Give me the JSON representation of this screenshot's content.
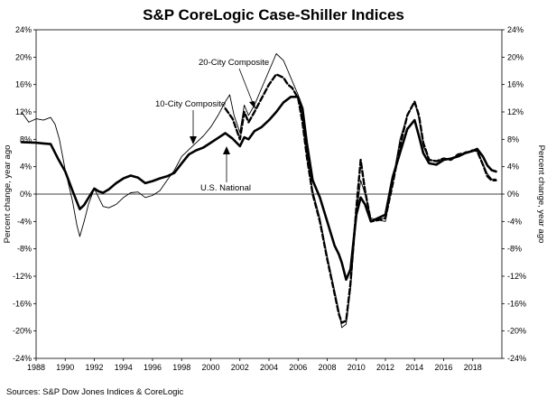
{
  "chart_data": {
    "type": "line",
    "title": "S&P CoreLogic Case-Shiller Indices",
    "ylabel_left": "Percent change, year ago",
    "ylabel_right": "Percent change, year ago",
    "source": "Sources:  S&P Dow Jones Indices & CoreLogic",
    "xlim": [
      1988,
      2020.0
    ],
    "ylim": [
      -24,
      24
    ],
    "x_ticks": [
      "1988",
      "1990",
      "1992",
      "1994",
      "1996",
      "1998",
      "2000",
      "2002",
      "2004",
      "2006",
      "2008",
      "2010",
      "2012",
      "2014",
      "2016",
      "2018"
    ],
    "y_ticks_left": [
      "24%",
      "20%",
      "16%",
      "12%",
      "8%",
      "4%",
      "0%",
      "-4%",
      "-8%",
      "-12%",
      "-16%",
      "-20%",
      "-24%"
    ],
    "y_ticks_right": [
      "24%",
      "20%",
      "16%",
      "12%",
      "8%",
      "4%",
      "0%",
      "-4%",
      "-8%",
      "-12%",
      "-16%",
      "-20%",
      "-24%"
    ],
    "annotations": [
      "20-City Composite",
      "10-City Composite",
      "U.S. National"
    ],
    "series": [
      {
        "name": "U.S. National",
        "style": "thick-solid",
        "color": "#000000",
        "x": [
          1987.0,
          1988.0,
          1988.5,
          1989.0,
          1989.5,
          1990.0,
          1990.5,
          1991.0,
          1991.3,
          1991.7,
          1992.0,
          1992.3,
          1992.6,
          1993.0,
          1993.5,
          1994.0,
          1994.5,
          1995.0,
          1995.5,
          1996.0,
          1996.5,
          1997.0,
          1997.5,
          1998.0,
          1998.5,
          1999.0,
          1999.5,
          2000.0,
          2000.5,
          2001.0,
          2001.5,
          2002.0,
          2002.3,
          2002.6,
          2003.0,
          2003.5,
          2004.0,
          2004.5,
          2005.0,
          2005.5,
          2006.0,
          2006.3,
          2006.6,
          2007.0,
          2007.5,
          2008.0,
          2008.5,
          2008.8,
          2009.0,
          2009.3,
          2009.6,
          2010.0,
          2010.3,
          2010.6,
          2011.0,
          2011.5,
          2012.0,
          2012.5,
          2013.0,
          2013.5,
          2014.0,
          2014.3,
          2014.6,
          2015.0,
          2015.5,
          2016.0,
          2016.5,
          2017.0,
          2017.5,
          2018.0,
          2018.3,
          2018.7,
          2019.0,
          2019.3,
          2019.6
        ],
        "values": [
          7.6,
          7.5,
          7.4,
          7.3,
          5.2,
          3.3,
          0.5,
          -2.2,
          -1.6,
          -0.2,
          0.8,
          0.4,
          0.2,
          0.7,
          1.6,
          2.3,
          2.7,
          2.4,
          1.6,
          1.9,
          2.3,
          2.6,
          3.1,
          4.5,
          5.8,
          6.4,
          6.8,
          7.5,
          8.2,
          8.9,
          8.1,
          7.0,
          8.3,
          8.0,
          9.2,
          9.8,
          10.8,
          12.0,
          13.4,
          14.2,
          14.2,
          12.5,
          7.5,
          2.0,
          -0.5,
          -4.0,
          -7.5,
          -8.8,
          -10.0,
          -12.5,
          -11.0,
          -3.0,
          -0.5,
          -1.5,
          -4.0,
          -3.5,
          -3.0,
          2.5,
          6.0,
          9.5,
          10.8,
          8.5,
          6.0,
          4.5,
          4.3,
          5.0,
          5.2,
          5.5,
          6.0,
          6.3,
          6.6,
          5.5,
          4.2,
          3.5,
          3.3
        ]
      },
      {
        "name": "10-City Composite",
        "style": "thin-solid",
        "color": "#000000",
        "x": [
          1987.0,
          1987.5,
          1988.0,
          1988.5,
          1989.0,
          1989.3,
          1989.6,
          1990.0,
          1990.5,
          1990.8,
          1991.0,
          1991.3,
          1991.6,
          1992.0,
          1992.3,
          1992.6,
          1993.0,
          1993.5,
          1994.0,
          1994.5,
          1995.0,
          1995.5,
          1996.0,
          1996.5,
          1997.0,
          1997.5,
          1998.0,
          1998.5,
          1999.0,
          1999.5,
          2000.0,
          2000.5,
          2001.0,
          2001.3,
          2001.6,
          2002.0,
          2002.3,
          2002.6,
          2003.0,
          2003.5,
          2004.0,
          2004.5,
          2005.0,
          2005.3,
          2005.6,
          2006.0,
          2006.3,
          2006.6,
          2007.0,
          2007.5,
          2008.0,
          2008.5,
          2008.8,
          2009.0,
          2009.3,
          2009.6,
          2010.0,
          2010.3,
          2010.6,
          2011.0,
          2011.5,
          2012.0,
          2012.5,
          2013.0,
          2013.5,
          2014.0,
          2014.3,
          2014.6,
          2015.0,
          2015.5,
          2016.0,
          2016.5,
          2017.0,
          2017.5,
          2018.0,
          2018.3,
          2018.7,
          2019.0,
          2019.3,
          2019.6
        ],
        "values": [
          12.0,
          10.5,
          11.0,
          10.8,
          11.2,
          10.2,
          8.0,
          3.5,
          -1.0,
          -4.5,
          -6.2,
          -4.0,
          -1.5,
          0.8,
          -0.5,
          -1.8,
          -2.0,
          -1.5,
          -0.5,
          0.2,
          0.3,
          -0.5,
          -0.2,
          0.5,
          2.0,
          3.5,
          5.5,
          6.5,
          7.5,
          8.5,
          9.8,
          11.5,
          13.5,
          14.5,
          11.5,
          9.0,
          13.0,
          11.5,
          13.0,
          15.5,
          18.0,
          20.5,
          19.5,
          18.0,
          16.5,
          14.5,
          11.0,
          6.0,
          0.5,
          -3.5,
          -9.0,
          -14.0,
          -17.0,
          -19.5,
          -19.0,
          -14.0,
          -3.0,
          2.0,
          0.0,
          -3.5,
          -3.8,
          -4.0,
          2.0,
          8.0,
          11.5,
          13.5,
          11.0,
          7.0,
          5.0,
          4.8,
          5.2,
          5.0,
          5.5,
          6.2,
          6.2,
          6.4,
          4.5,
          3.0,
          2.2,
          2.2
        ]
      },
      {
        "name": "20-City Composite",
        "style": "thick-dashed",
        "color": "#000000",
        "x": [
          2001.0,
          2001.5,
          2002.0,
          2002.3,
          2002.6,
          2003.0,
          2003.5,
          2004.0,
          2004.5,
          2005.0,
          2005.3,
          2005.6,
          2006.0,
          2006.3,
          2006.6,
          2007.0,
          2007.5,
          2008.0,
          2008.5,
          2008.8,
          2009.0,
          2009.3,
          2009.6,
          2010.0,
          2010.3,
          2010.6,
          2011.0,
          2011.5,
          2012.0,
          2012.5,
          2013.0,
          2013.5,
          2014.0,
          2014.3,
          2014.6,
          2015.0,
          2015.5,
          2016.0,
          2016.5,
          2017.0,
          2017.5,
          2018.0,
          2018.3,
          2018.7,
          2019.0,
          2019.3,
          2019.6
        ],
        "values": [
          12.5,
          11.0,
          8.0,
          12.0,
          10.5,
          12.0,
          14.0,
          16.0,
          17.5,
          17.0,
          16.0,
          15.5,
          14.0,
          10.5,
          5.5,
          0.0,
          -4.0,
          -9.5,
          -14.5,
          -17.5,
          -18.8,
          -18.5,
          -13.0,
          -2.0,
          5.0,
          0.5,
          -4.0,
          -3.8,
          -3.5,
          1.5,
          7.0,
          11.5,
          13.5,
          11.5,
          7.5,
          5.0,
          4.8,
          5.2,
          5.0,
          5.8,
          6.0,
          6.4,
          6.3,
          4.3,
          2.6,
          2.0,
          2.0
        ]
      }
    ]
  }
}
